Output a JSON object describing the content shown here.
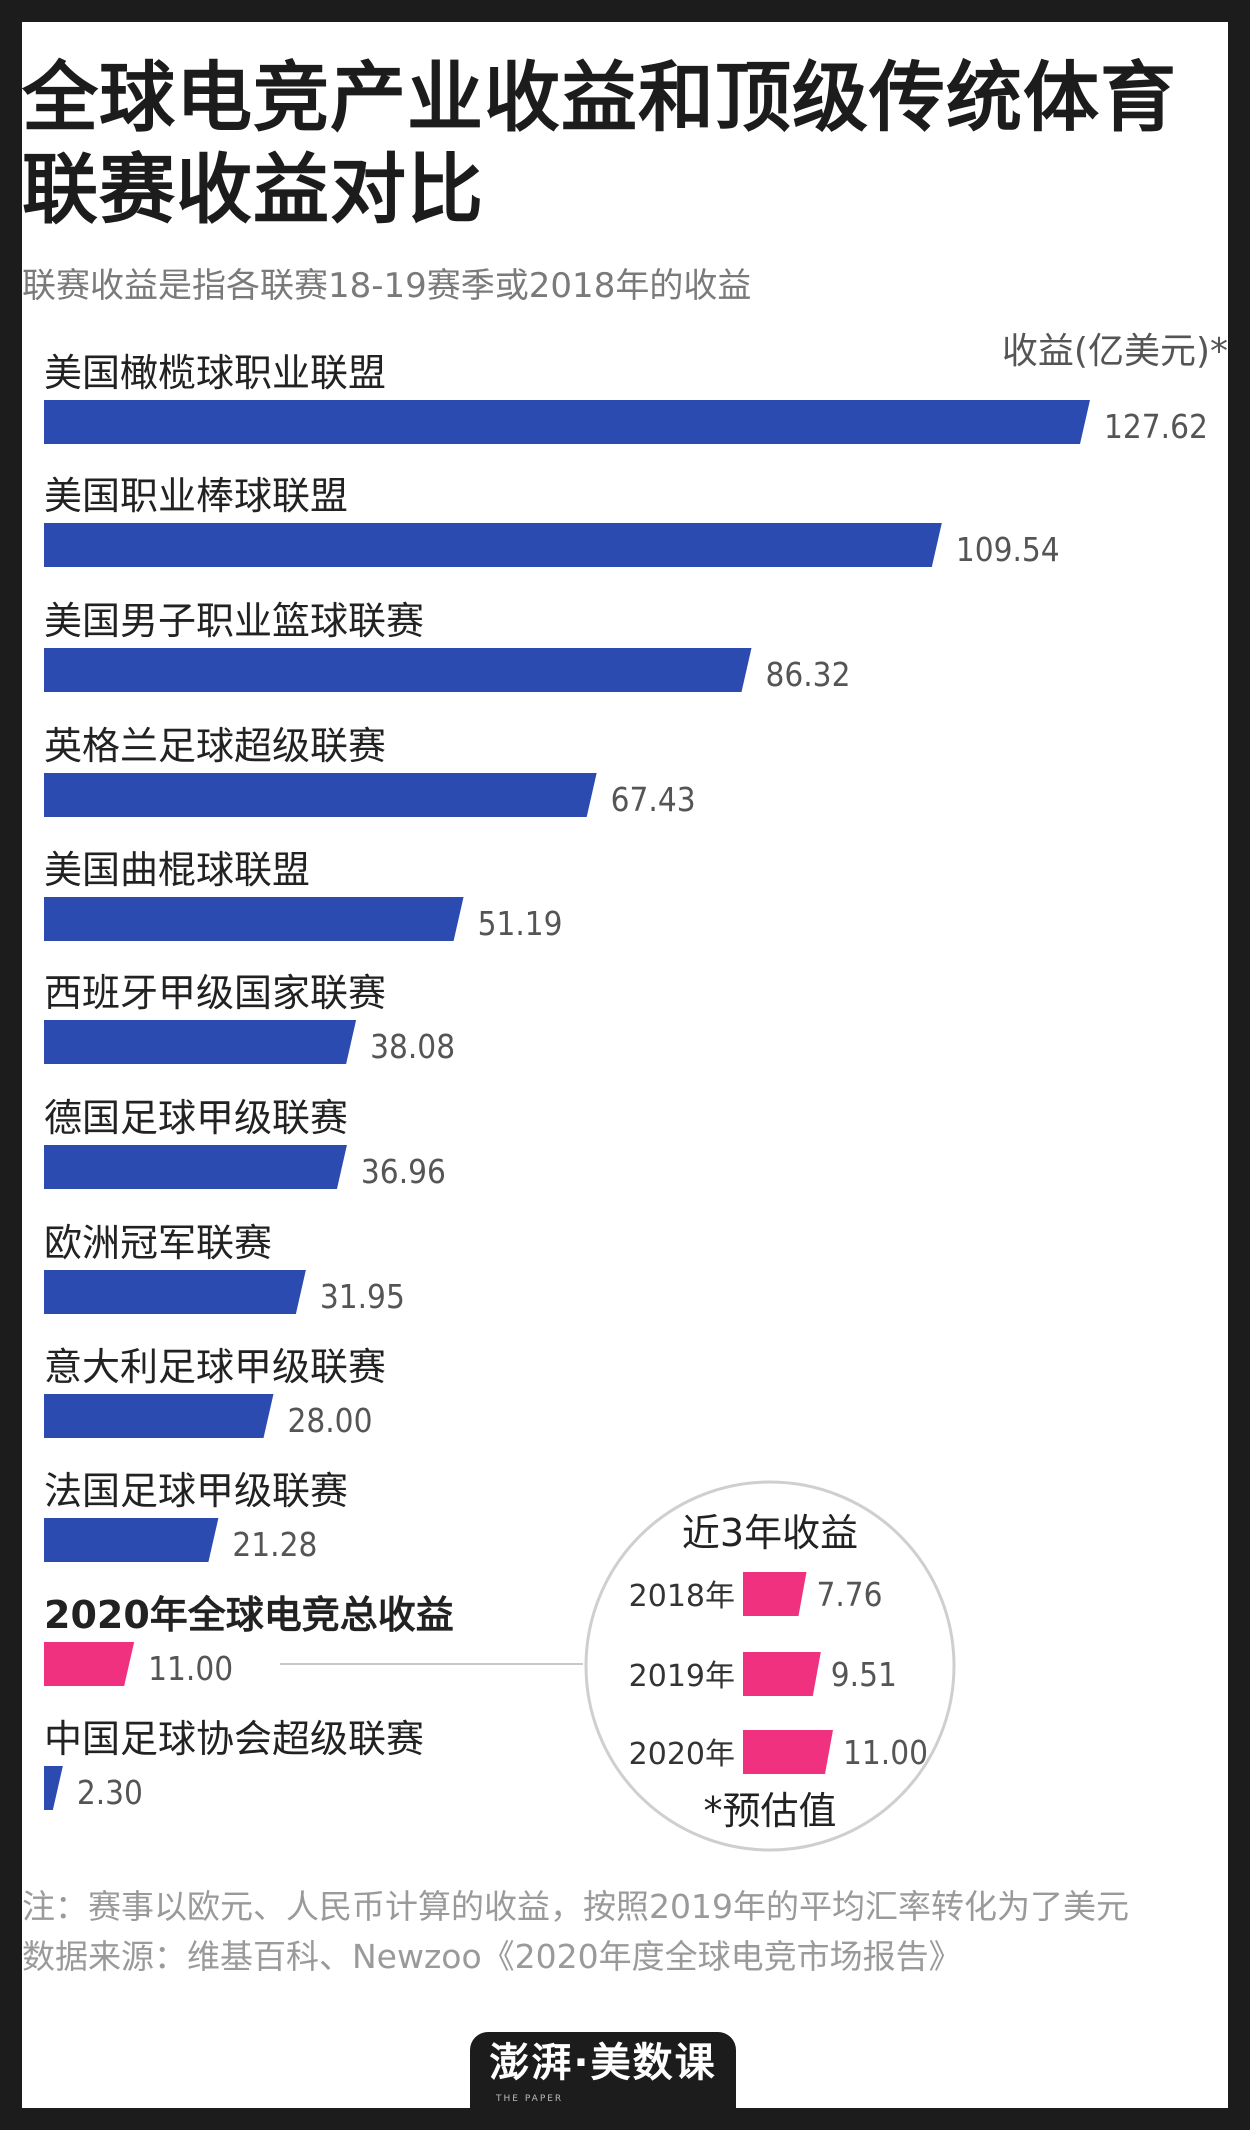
{
  "title_lines": [
    "全球电竞产业收益和顶级传统体育",
    "联赛收益对比"
  ],
  "subtitle": "联赛收益是指各联赛18-19赛季或2018年的收益",
  "unit": "收益(亿美元)*",
  "colors": {
    "bar": "#2b4bb0",
    "highlight": "#f0317f",
    "connector": "#c8c8c8",
    "circle": "#cfcfcf"
  },
  "chart_data": [
    {
      "type": "bar",
      "orientation": "horizontal",
      "ylabel": "收益(亿美元)*",
      "categories": [
        "美国橄榄球职业联盟",
        "美国职业棒球联盟",
        "美国男子职业篮球联赛",
        "英格兰足球超级联赛",
        "美国曲棍球联盟",
        "西班牙甲级国家联赛",
        "德国足球甲级联赛",
        "欧洲冠军联赛",
        "意大利足球甲级联赛",
        "法国足球甲级联赛",
        "2020年全球电竞总收益",
        "中国足球协会超级联赛"
      ],
      "values": [
        127.62,
        109.54,
        86.32,
        67.43,
        51.19,
        38.08,
        36.96,
        31.95,
        28.0,
        21.28,
        11.0,
        2.3
      ],
      "value_labels": [
        "127.62",
        "109.54",
        "86.32",
        "67.43",
        "51.19",
        "38.08",
        "36.96",
        "31.95",
        "28.00",
        "21.28",
        "11.00",
        "2.30"
      ],
      "highlight": "2020年全球电竞总收益",
      "xlim": [
        0,
        128
      ]
    },
    {
      "type": "bar",
      "orientation": "horizontal",
      "title": "近3年收益",
      "categories": [
        "2018年",
        "2019年",
        "2020年"
      ],
      "values": [
        7.76,
        9.51,
        11.0
      ],
      "value_labels": [
        "7.76",
        "9.51",
        "11.00"
      ],
      "annotation": "*预估值"
    }
  ],
  "note_lines": [
    "注：赛事以欧元、人民币计算的收益，按照2019年的平均汇率转化为了美元",
    "数据来源：维基百科、Newzoo《2020年度全球电竞市场报告》"
  ],
  "logo": {
    "brand": "澎湃·美数课",
    "sub": "THE PAPER"
  }
}
